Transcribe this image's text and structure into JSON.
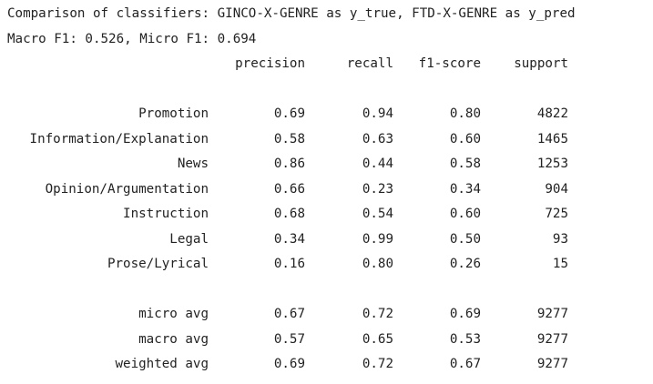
{
  "header": {
    "title": "Comparison of classifiers: GINCO-X-GENRE as y_true, FTD-X-GENRE as y_pred",
    "metrics": "Macro F1: 0.526, Micro F1: 0.694"
  },
  "report": {
    "columns": [
      "precision",
      "recall",
      "f1-score",
      "support"
    ],
    "classes": [
      {
        "label": "Promotion",
        "precision": "0.69",
        "recall": "0.94",
        "f1": "0.80",
        "support": "4822"
      },
      {
        "label": "Information/Explanation",
        "precision": "0.58",
        "recall": "0.63",
        "f1": "0.60",
        "support": "1465"
      },
      {
        "label": "News",
        "precision": "0.86",
        "recall": "0.44",
        "f1": "0.58",
        "support": "1253"
      },
      {
        "label": "Opinion/Argumentation",
        "precision": "0.66",
        "recall": "0.23",
        "f1": "0.34",
        "support": "904"
      },
      {
        "label": "Instruction",
        "precision": "0.68",
        "recall": "0.54",
        "f1": "0.60",
        "support": "725"
      },
      {
        "label": "Legal",
        "precision": "0.34",
        "recall": "0.99",
        "f1": "0.50",
        "support": "93"
      },
      {
        "label": "Prose/Lyrical",
        "precision": "0.16",
        "recall": "0.80",
        "f1": "0.26",
        "support": "15"
      }
    ],
    "averages": [
      {
        "label": "micro avg",
        "precision": "0.67",
        "recall": "0.72",
        "f1": "0.69",
        "support": "9277"
      },
      {
        "label": "macro avg",
        "precision": "0.57",
        "recall": "0.65",
        "f1": "0.53",
        "support": "9277"
      },
      {
        "label": "weighted avg",
        "precision": "0.69",
        "recall": "0.72",
        "f1": "0.67",
        "support": "9277"
      }
    ]
  }
}
